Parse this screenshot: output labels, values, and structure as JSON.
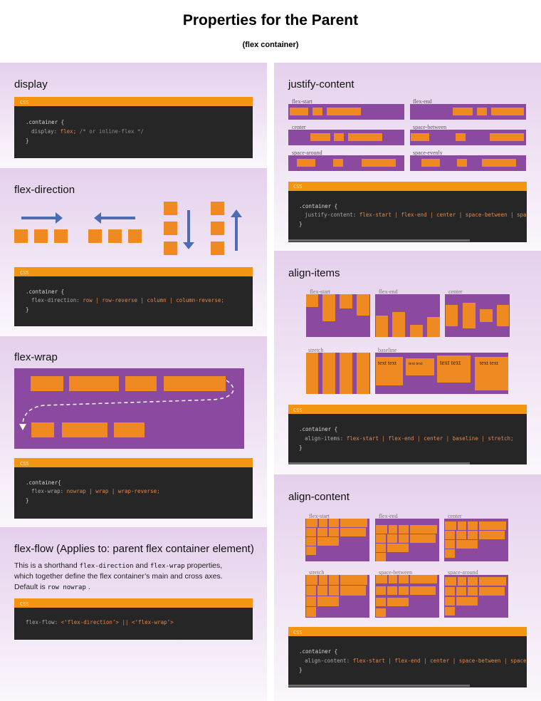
{
  "header": {
    "title": "Properties for the Parent",
    "subtitle": "(flex container)"
  },
  "display": {
    "heading": "display",
    "code_label": "CSS",
    "code": {
      "selector": ".container {",
      "property": "display:",
      "value": "flex;",
      "comment": "/* or inline-flex */",
      "close": "}"
    }
  },
  "flex_direction": {
    "heading": "flex-direction",
    "code_label": "CSS",
    "code": {
      "selector": ".container {",
      "property": "flex-direction:",
      "value": "row | row-reverse | column | column-reverse;",
      "close": "}"
    }
  },
  "flex_wrap": {
    "heading": "flex-wrap",
    "code_label": "CSS",
    "code": {
      "selector": ".container{",
      "property": "flex-wrap:",
      "value": "nowrap | wrap | wrap-reverse;",
      "close": "}"
    }
  },
  "flex_flow": {
    "heading": "flex-flow (Applies to: parent flex container element)",
    "description": [
      "This is a shorthand",
      "flex-direction",
      "and",
      "flex-wrap",
      "properties,",
      "which together define the flex container’s main and cross axes.",
      "Default is",
      "row nowrap",
      "."
    ],
    "code_label": "CSS",
    "code": {
      "property": "flex-flow:",
      "value": "<‘flex-direction’> || <‘flex-wrap’>"
    }
  },
  "justify_content": {
    "heading": "justify-content",
    "labels": [
      "flex-start",
      "flex-end",
      "center",
      "space-between",
      "space-around",
      "space-evenly"
    ],
    "code_label": "CSS",
    "code": {
      "selector": ".container {",
      "property": "justify-content:",
      "value": "flex-start | flex-end | center | space-between | space-around | space-evenly;",
      "close": "}"
    }
  },
  "align_items": {
    "heading": "align-items",
    "labels": [
      "flex-start",
      "flex-end",
      "center",
      "stretch",
      "baseline"
    ],
    "sample_text": [
      "text text",
      "text text",
      "text text",
      "text text"
    ],
    "code_label": "CSS",
    "code": {
      "selector": ".container {",
      "property": "align-items:",
      "value": "flex-start | flex-end | center | baseline | stretch;",
      "close": "}"
    }
  },
  "align_content": {
    "heading": "align-content",
    "labels": [
      "flex-start",
      "flex-end",
      "center",
      "stretch",
      "space-between",
      "space-around"
    ],
    "code_label": "CSS",
    "code": {
      "selector": ".container {",
      "property": "align-content:",
      "value": "flex-start | flex-end | center | space-between | space-around | space-evenly | stretch;",
      "close": "}"
    }
  }
}
